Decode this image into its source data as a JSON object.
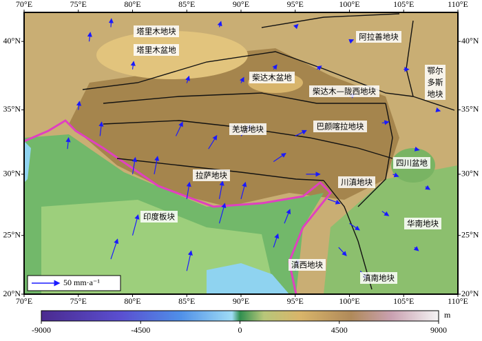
{
  "chart_data": {
    "type": "vector_map",
    "xticks": [
      {
        "value": 70,
        "label": "70°E"
      },
      {
        "value": 75,
        "label": "75°E"
      },
      {
        "value": 80,
        "label": "80°E"
      },
      {
        "value": 85,
        "label": "85°E"
      },
      {
        "value": 90,
        "label": "90°E"
      },
      {
        "value": 95,
        "label": "95°E"
      },
      {
        "value": 100,
        "label": "100°E"
      },
      {
        "value": 105,
        "label": "105°E"
      },
      {
        "value": 110,
        "label": "110°E"
      }
    ],
    "yticks": [
      {
        "value": 20,
        "label": "20°N"
      },
      {
        "value": 25,
        "label": "25°N"
      },
      {
        "value": 30,
        "label": "30°N"
      },
      {
        "value": 35,
        "label": "35°N"
      },
      {
        "value": 40,
        "label": "40°N"
      }
    ],
    "xlim": [
      70,
      110
    ],
    "regions": [
      "塔里木地块",
      "塔里木盆地",
      "柴达木盆地",
      "柴达木—陇西地块",
      "阿拉善地块",
      [
        "鄂尔",
        "多斯",
        "地块"
      ],
      "羌塘地块",
      "巴颜喀拉地块",
      "四川盆地",
      "川滇地块",
      "拉萨地块",
      "印度板块",
      "华南地块",
      "滇西地块",
      "滇南地块"
    ],
    "vector_color": "#1a1aff",
    "vectors": {
      "lon": [
        78,
        80,
        85,
        88,
        80,
        77,
        75,
        82,
        85,
        88,
        90,
        84,
        87,
        90,
        93,
        95,
        96,
        98,
        100,
        99,
        101,
        103,
        104,
        106,
        103,
        100,
        97,
        93,
        90,
        85,
        80,
        76,
        78,
        88,
        95,
        100,
        105,
        108,
        107,
        106,
        95,
        93,
        94,
        74
      ],
      "lat": [
        23,
        25,
        22,
        26,
        30,
        33,
        35,
        30,
        28,
        28,
        28,
        33,
        32,
        33,
        31,
        33,
        30,
        28,
        26,
        24,
        22,
        27,
        30,
        32,
        34,
        36,
        38,
        38,
        37,
        37,
        38,
        40,
        41,
        41,
        41,
        40,
        38,
        35,
        29,
        24,
        22,
        24,
        26,
        32
      ],
      "ve": [
        12,
        10,
        8,
        10,
        5,
        3,
        2,
        6,
        5,
        6,
        8,
        12,
        15,
        18,
        22,
        20,
        25,
        22,
        18,
        14,
        12,
        12,
        10,
        8,
        12,
        10,
        8,
        6,
        5,
        4,
        2,
        2,
        1,
        3,
        5,
        7,
        9,
        7,
        8,
        7,
        5,
        8,
        10,
        2
      ],
      "vn": [
        36,
        37,
        36,
        36,
        30,
        25,
        15,
        32,
        30,
        32,
        30,
        25,
        24,
        20,
        15,
        10,
        0,
        -8,
        -12,
        -15,
        -14,
        -8,
        -4,
        -2,
        2,
        4,
        6,
        8,
        10,
        12,
        14,
        16,
        15,
        10,
        5,
        3,
        0,
        -2,
        -5,
        -6,
        20,
        24,
        25,
        20
      ]
    },
    "scale_bar": {
      "value": 50,
      "label": "50 mm·a⁻¹"
    },
    "colorbar": {
      "clim": [
        -9000,
        9000
      ],
      "ticks": [
        -9000,
        -4500,
        0,
        4500,
        9000
      ],
      "unit": "m"
    }
  }
}
